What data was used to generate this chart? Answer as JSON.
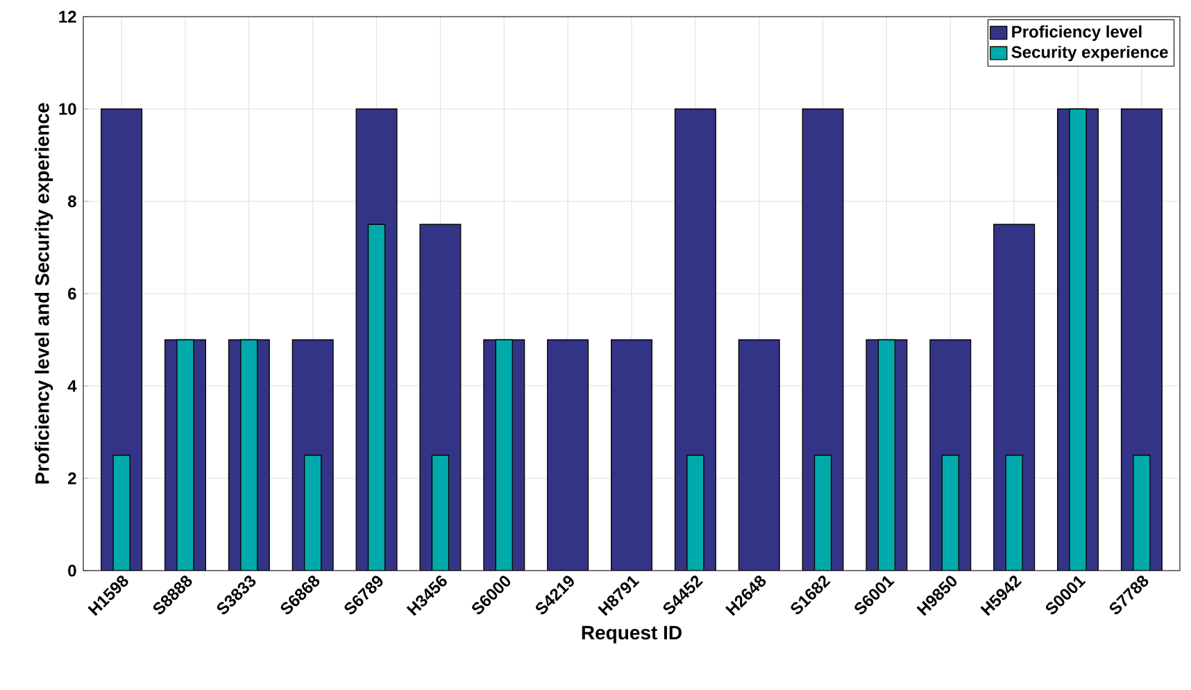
{
  "chart_data": {
    "type": "bar",
    "xlabel": "Request ID",
    "ylabel": "Proficiency level and Security experience",
    "categories": [
      "H1598",
      "S8888",
      "S3833",
      "S6868",
      "S6789",
      "H3456",
      "S6000",
      "S4219",
      "H8791",
      "S4452",
      "H2648",
      "S1682",
      "S6001",
      "H9850",
      "H5942",
      "S0001",
      "S7788"
    ],
    "series": [
      {
        "name": "Proficiency level",
        "color": "#343487",
        "values": [
          10,
          5,
          5,
          5,
          10,
          7.5,
          5,
          5,
          5,
          10,
          5,
          10,
          5,
          5,
          7.5,
          10,
          10
        ]
      },
      {
        "name": "Security experience",
        "color": "#00aaaa",
        "values": [
          2.5,
          5,
          5,
          2.5,
          7.5,
          2.5,
          5,
          null,
          null,
          2.5,
          null,
          2.5,
          5,
          2.5,
          2.5,
          10,
          2.5
        ]
      }
    ],
    "ylim": [
      0,
      12
    ],
    "yticks": [
      0,
      2,
      4,
      6,
      8,
      10,
      12
    ],
    "grid": true,
    "legend": "top right"
  }
}
